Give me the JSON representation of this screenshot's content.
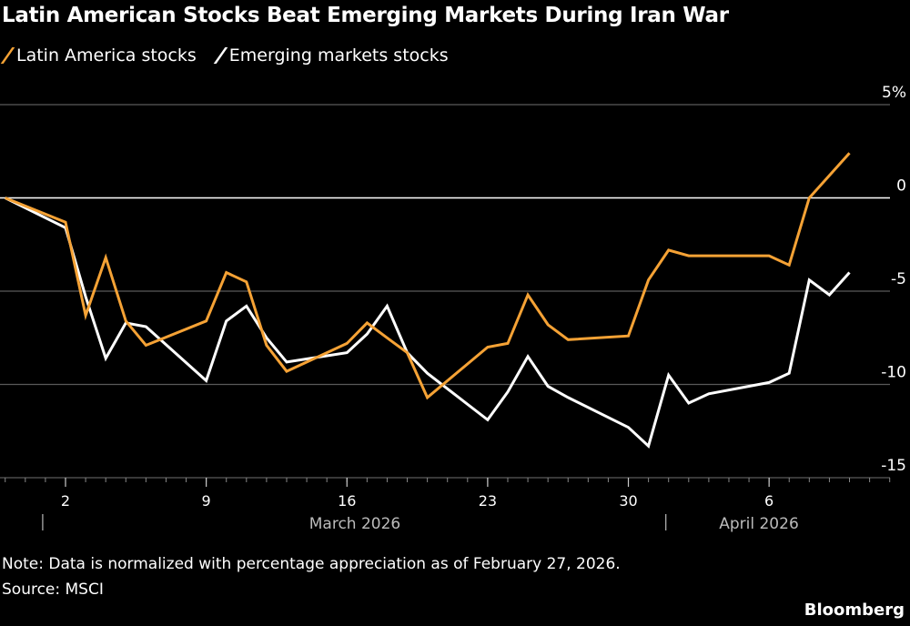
{
  "title": "Latin American Stocks Beat Emerging Markets During Iran War",
  "note": "Note: Data is normalized with percentage appreciation as of February 27, 2026.",
  "source": "Source: MSCI",
  "logo": "Bloomberg",
  "colors": {
    "latam": "#f5a235",
    "em": "#ffffff",
    "background": "#000000",
    "grid": "#5a5a5a"
  },
  "chart_data": {
    "type": "line",
    "title": "Latin American Stocks Beat Emerging Markets During Iran War",
    "x": [
      "2026-02-27",
      "2026-03-02",
      "2026-03-03",
      "2026-03-04",
      "2026-03-05",
      "2026-03-06",
      "2026-03-09",
      "2026-03-10",
      "2026-03-11",
      "2026-03-12",
      "2026-03-13",
      "2026-03-16",
      "2026-03-17",
      "2026-03-18",
      "2026-03-19",
      "2026-03-20",
      "2026-03-23",
      "2026-03-24",
      "2026-03-25",
      "2026-03-26",
      "2026-03-27",
      "2026-03-30",
      "2026-03-31",
      "2026-04-01",
      "2026-04-02",
      "2026-04-03",
      "2026-04-06",
      "2026-04-07",
      "2026-04-08",
      "2026-04-09",
      "2026-04-10"
    ],
    "series": [
      {
        "name": "Latin America stocks",
        "color": "#f5a235",
        "values": [
          0,
          -1.3,
          -6.3,
          -3.2,
          -6.6,
          -7.9,
          -6.6,
          -4.0,
          -4.5,
          -7.9,
          -9.3,
          -7.8,
          -6.7,
          -7.5,
          -8.3,
          -10.7,
          -8.0,
          -7.8,
          -5.2,
          -6.8,
          -7.6,
          -7.4,
          -4.4,
          -2.8,
          -3.1,
          -3.1,
          -3.1,
          -3.6,
          0.0,
          1.2,
          2.4
        ]
      },
      {
        "name": "Emerging markets stocks",
        "color": "#ffffff",
        "values": [
          0,
          -1.6,
          -5.3,
          -8.6,
          -6.7,
          -6.9,
          -9.8,
          -6.6,
          -5.8,
          -7.5,
          -8.8,
          -8.3,
          -7.3,
          -5.8,
          -8.3,
          -9.4,
          -11.9,
          -10.4,
          -8.5,
          -10.1,
          -10.7,
          -12.3,
          -13.3,
          -9.5,
          -11.0,
          -10.5,
          -9.9,
          -9.4,
          -4.4,
          -5.2,
          -4.0
        ]
      }
    ],
    "ylim": [
      -15,
      5
    ],
    "yticks": [
      5,
      0,
      -5,
      -10,
      -15
    ],
    "ytick_labels": [
      "5%",
      "0",
      "-5",
      "-10",
      "-15"
    ],
    "xtick_labels": [
      "2",
      "9",
      "16",
      "23",
      "30",
      "6"
    ],
    "xtick_dates": [
      "2026-03-02",
      "2026-03-09",
      "2026-03-16",
      "2026-03-23",
      "2026-03-30",
      "2026-04-06"
    ],
    "month_labels": [
      "March 2026",
      "April 2026"
    ],
    "grid": true,
    "legend_placement": "top-left",
    "xlabel": "",
    "ylabel": ""
  }
}
